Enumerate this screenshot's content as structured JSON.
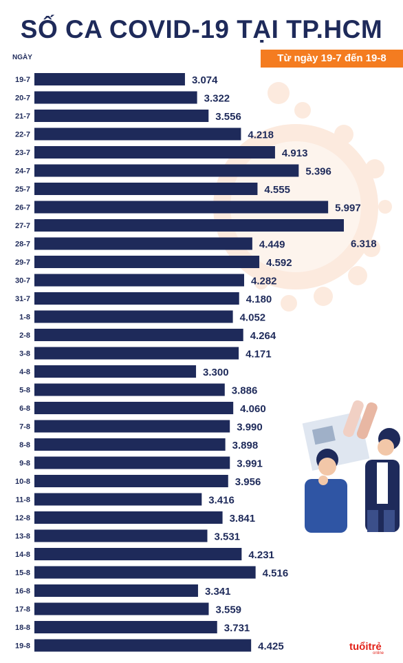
{
  "header": {
    "title": "SỐ CA COVID-19 TẠI TP.HCM",
    "subtitle": "Từ ngày 19-7 đến 19-8",
    "axis_title": "NGÀY"
  },
  "logo": {
    "text": "tuổi trẻ",
    "sub": "online"
  },
  "colors": {
    "bar": "#1e2a5a",
    "text": "#1e2a5a",
    "accent": "#f47c20"
  },
  "chart_data": {
    "type": "bar",
    "orientation": "horizontal",
    "title": "SỐ CA COVID-19 TẠI TP.HCM",
    "subtitle": "Từ ngày 19-7 đến 19-8",
    "ylabel": "NGÀY",
    "categories": [
      "19-7",
      "20-7",
      "21-7",
      "22-7",
      "23-7",
      "24-7",
      "25-7",
      "26-7",
      "27-7",
      "28-7",
      "29-7",
      "30-7",
      "31-7",
      "1-8",
      "2-8",
      "3-8",
      "4-8",
      "5-8",
      "6-8",
      "7-8",
      "8-8",
      "9-8",
      "10-8",
      "11-8",
      "12-8",
      "13-8",
      "14-8",
      "15-8",
      "16-8",
      "17-8",
      "18-8",
      "19-8"
    ],
    "values": [
      3074,
      3322,
      3556,
      4218,
      4913,
      5396,
      4555,
      5997,
      6318,
      4449,
      4592,
      4282,
      4180,
      4052,
      4264,
      4171,
      3300,
      3886,
      4060,
      3990,
      3898,
      3991,
      3956,
      3416,
      3841,
      3531,
      4231,
      4516,
      3341,
      3559,
      3731,
      4425
    ],
    "value_labels": [
      "3.074",
      "3.322",
      "3.556",
      "4.218",
      "4.913",
      "5.396",
      "4.555",
      "5.997",
      "6.318",
      "4.449",
      "4.592",
      "4.282",
      "4.180",
      "4.052",
      "4.264",
      "4.171",
      "3.300",
      "3.886",
      "4.060",
      "3.990",
      "3.898",
      "3.991",
      "3.956",
      "3.416",
      "3.841",
      "3.531",
      "4.231",
      "4.516",
      "3.341",
      "3.559",
      "3.731",
      "4.425"
    ],
    "grid": false,
    "legend": "none"
  }
}
